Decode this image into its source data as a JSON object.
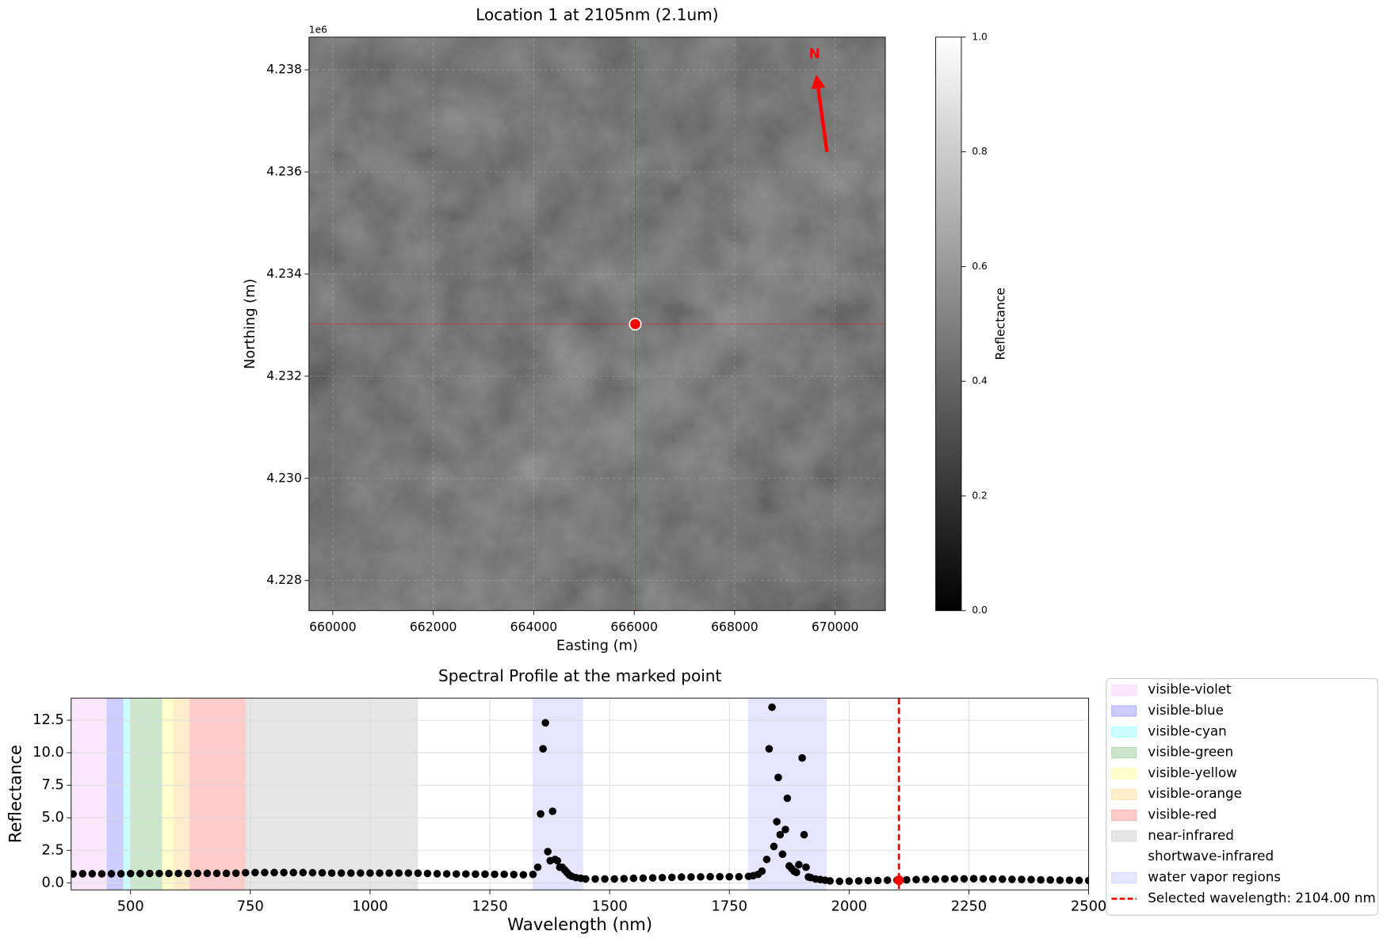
{
  "chart_data": [
    {
      "type": "image",
      "title": "Location 1 at 2105nm (2.1um)",
      "x_label": "Easting (m)",
      "y_label": "Northing (m)",
      "y_offset_label": "1e6",
      "xlim": [
        659525,
        671000
      ],
      "ylim": [
        4.22741,
        4.23864
      ],
      "xticks": [
        660000,
        662000,
        664000,
        666000,
        668000,
        670000
      ],
      "yticks": [
        4.228,
        {
          "value": 4.23,
          "label": "4.230"
        },
        4.232,
        4.234,
        4.236,
        4.238
      ],
      "grid": true,
      "marker": {
        "x": 666021,
        "y": 4.23302,
        "color": "red"
      },
      "north_label": "N",
      "colorbar": {
        "label": "Reflectance",
        "cmap": "gray",
        "lim": [
          0,
          1
        ],
        "ticks": [
          {
            "value": 0,
            "label": "0.0"
          },
          0.2,
          0.4,
          0.6,
          0.8,
          {
            "value": 1,
            "label": "1.0"
          }
        ]
      }
    },
    {
      "type": "scatter",
      "title": "Spectral Profile at the marked point",
      "x_label": "Wavelength (nm)",
      "y_label": "Reflectance",
      "xlim": [
        376,
        2500
      ],
      "ylim": [
        -0.54,
        14.2
      ],
      "xticks": [
        500,
        750,
        1000,
        1250,
        1500,
        1750,
        2000,
        2250,
        2500
      ],
      "yticks": [
        {
          "value": 0,
          "label": "0.0"
        },
        2.5,
        {
          "value": 5,
          "label": "5.0"
        },
        7.5,
        {
          "value": 10,
          "label": "10.0"
        },
        12.5
      ],
      "grid": true,
      "color": "black",
      "legend": "outside-right",
      "spans": [
        {
          "name": "visible-violet",
          "color": "#ee82ee",
          "alpha": 0.2,
          "ranges": [
            [
              376,
              450
            ]
          ]
        },
        {
          "name": "visible-blue",
          "color": "#0000ff",
          "alpha": 0.2,
          "ranges": [
            [
              450,
              485
            ]
          ]
        },
        {
          "name": "visible-cyan",
          "color": "#00ffff",
          "alpha": 0.2,
          "ranges": [
            [
              485,
              500
            ]
          ]
        },
        {
          "name": "visible-green",
          "color": "#008000",
          "alpha": 0.2,
          "ranges": [
            [
              500,
              566
            ]
          ]
        },
        {
          "name": "visible-yellow",
          "color": "#ffff00",
          "alpha": 0.2,
          "ranges": [
            [
              566,
              590
            ]
          ]
        },
        {
          "name": "visible-orange",
          "color": "#ffa500",
          "alpha": 0.2,
          "ranges": [
            [
              590,
              623
            ]
          ]
        },
        {
          "name": "visible-red",
          "color": "#ff0000",
          "alpha": 0.2,
          "ranges": [
            [
              623,
              740
            ]
          ]
        },
        {
          "name": "near-infrared",
          "color": "#808080",
          "alpha": 0.2,
          "ranges": [
            [
              740,
              1100
            ]
          ]
        },
        {
          "name": "shortwave-infrared",
          "color": "#ffffff",
          "alpha": 0.2,
          "ranges": [
            [
              1100,
              2500
            ]
          ]
        },
        {
          "name": "water vapor regions",
          "color": "#0000ff",
          "alpha": 0.1,
          "ranges": [
            [
              1339,
              1445
            ],
            [
              1789,
              1953
            ]
          ]
        }
      ],
      "selected": {
        "name": "Selected wavelength: 2104.00 nm",
        "x": 2104,
        "value": 0.2,
        "color": "red"
      },
      "x": [
        380,
        400,
        420,
        440,
        460,
        480,
        500,
        520,
        540,
        560,
        580,
        600,
        620,
        640,
        660,
        680,
        700,
        720,
        740,
        760,
        780,
        800,
        820,
        840,
        860,
        880,
        900,
        920,
        940,
        960,
        980,
        1000,
        1020,
        1040,
        1060,
        1080,
        1100,
        1120,
        1140,
        1160,
        1180,
        1200,
        1220,
        1240,
        1260,
        1280,
        1300,
        1320,
        1340,
        1350,
        1356,
        1361,
        1366,
        1371,
        1376,
        1381,
        1386,
        1391,
        1396,
        1401,
        1406,
        1411,
        1416,
        1421,
        1430,
        1440,
        1450,
        1470,
        1490,
        1510,
        1530,
        1550,
        1570,
        1590,
        1610,
        1630,
        1650,
        1670,
        1690,
        1710,
        1730,
        1750,
        1770,
        1790,
        1800,
        1810,
        1818,
        1828,
        1833,
        1839,
        1843,
        1849,
        1852,
        1856,
        1861,
        1867,
        1871,
        1875,
        1880,
        1885,
        1890,
        1895,
        1902,
        1906,
        1910,
        1915,
        1920,
        1930,
        1940,
        1950,
        1960,
        1980,
        2000,
        2020,
        2040,
        2060,
        2080,
        2100,
        2120,
        2140,
        2160,
        2180,
        2200,
        2220,
        2240,
        2260,
        2280,
        2300,
        2320,
        2340,
        2360,
        2380,
        2400,
        2420,
        2440,
        2460,
        2480,
        2500
      ],
      "values": [
        0.68,
        0.7,
        0.7,
        0.69,
        0.7,
        0.7,
        0.71,
        0.71,
        0.72,
        0.72,
        0.72,
        0.72,
        0.72,
        0.73,
        0.73,
        0.73,
        0.73,
        0.74,
        0.78,
        0.79,
        0.79,
        0.79,
        0.79,
        0.79,
        0.79,
        0.78,
        0.77,
        0.75,
        0.75,
        0.75,
        0.75,
        0.75,
        0.75,
        0.75,
        0.75,
        0.75,
        0.74,
        0.72,
        0.7,
        0.69,
        0.68,
        0.68,
        0.67,
        0.67,
        0.66,
        0.66,
        0.64,
        0.62,
        0.65,
        1.2,
        5.3,
        10.3,
        12.3,
        2.4,
        1.7,
        5.5,
        1.8,
        1.7,
        1.2,
        1.2,
        1.0,
        0.8,
        0.6,
        0.5,
        0.4,
        0.35,
        0.3,
        0.3,
        0.3,
        0.3,
        0.32,
        0.35,
        0.36,
        0.38,
        0.4,
        0.42,
        0.44,
        0.45,
        0.46,
        0.47,
        0.47,
        0.47,
        0.47,
        0.5,
        0.55,
        0.65,
        0.9,
        1.8,
        10.3,
        13.5,
        2.8,
        4.7,
        8.1,
        3.7,
        2.2,
        4.1,
        6.5,
        1.3,
        1.1,
        0.9,
        0.8,
        1.4,
        9.6,
        3.7,
        1.2,
        0.45,
        0.4,
        0.3,
        0.25,
        0.2,
        0.15,
        0.12,
        0.13,
        0.15,
        0.17,
        0.18,
        0.2,
        0.21,
        0.23,
        0.25,
        0.27,
        0.28,
        0.3,
        0.31,
        0.31,
        0.32,
        0.31,
        0.3,
        0.28,
        0.27,
        0.26,
        0.25,
        0.23,
        0.22,
        0.2,
        0.2,
        0.19,
        0.18
      ]
    }
  ]
}
